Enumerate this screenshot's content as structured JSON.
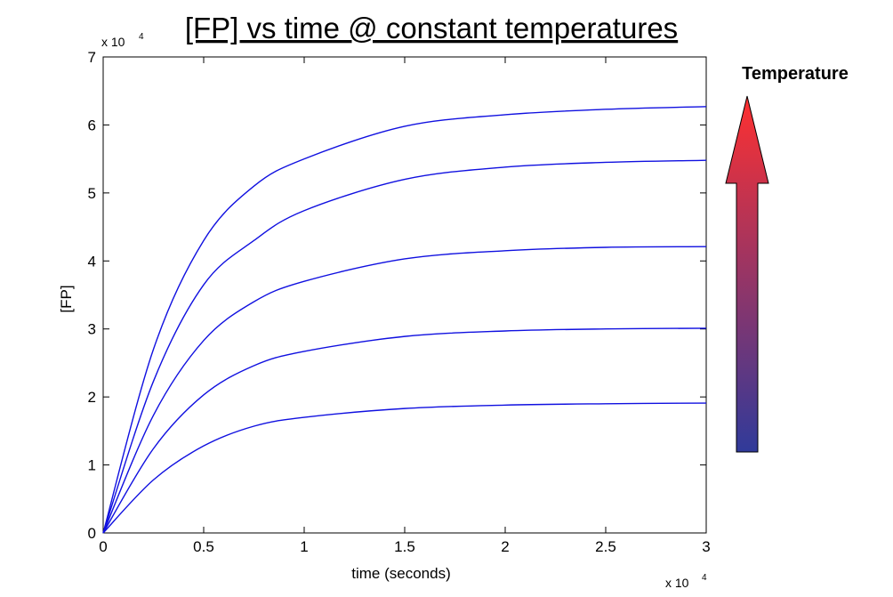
{
  "chart_data": {
    "type": "line",
    "title": "[FP] vs time @ constant temperatures",
    "xlabel": "time (seconds)",
    "ylabel": "[FP]",
    "x_multiplier": "x 10",
    "x_multiplier_exp": "4",
    "y_multiplier": "x 10",
    "y_multiplier_exp": "4",
    "xlim": [
      0,
      30000
    ],
    "ylim": [
      0,
      70000
    ],
    "xticks": [
      0,
      5000,
      10000,
      15000,
      20000,
      25000,
      30000
    ],
    "xtick_labels": [
      "0",
      "0.5",
      "1",
      "1.5",
      "2",
      "2.5",
      "3"
    ],
    "yticks": [
      0,
      10000,
      20000,
      30000,
      40000,
      50000,
      60000,
      70000
    ],
    "ytick_labels": [
      "0",
      "1",
      "2",
      "3",
      "4",
      "5",
      "6",
      "7"
    ],
    "grid": false,
    "series": [
      {
        "x": [
          0,
          2500,
          5000,
          7500,
          10000,
          15000,
          20000,
          25000,
          30000
        ],
        "y": [
          0,
          7800,
          12800,
          15700,
          17000,
          18300,
          18800,
          19000,
          19100
        ]
      },
      {
        "x": [
          0,
          2500,
          5000,
          7500,
          10000,
          15000,
          20000,
          25000,
          30000
        ],
        "y": [
          0,
          12400,
          20300,
          24600,
          26700,
          28900,
          29700,
          30000,
          30100
        ]
      },
      {
        "x": [
          0,
          2500,
          5000,
          7500,
          10000,
          15000,
          20000,
          25000,
          30000
        ],
        "y": [
          0,
          17300,
          28300,
          34000,
          37000,
          40300,
          41500,
          42000,
          42100
        ]
      },
      {
        "x": [
          0,
          2500,
          5000,
          7500,
          10000,
          15000,
          20000,
          25000,
          30000
        ],
        "y": [
          0,
          22300,
          36500,
          43000,
          47400,
          52000,
          53800,
          54500,
          54800
        ]
      },
      {
        "x": [
          0,
          2500,
          5000,
          7500,
          10000,
          15000,
          20000,
          25000,
          30000
        ],
        "y": [
          0,
          27000,
          43000,
          51000,
          55000,
          59800,
          61500,
          62300,
          62700
        ]
      }
    ],
    "series_color": "#1010e0"
  },
  "annotation": {
    "label": "Temperature",
    "arrow_color_top": "#ff3030",
    "arrow_color_bottom": "#303a9a"
  }
}
